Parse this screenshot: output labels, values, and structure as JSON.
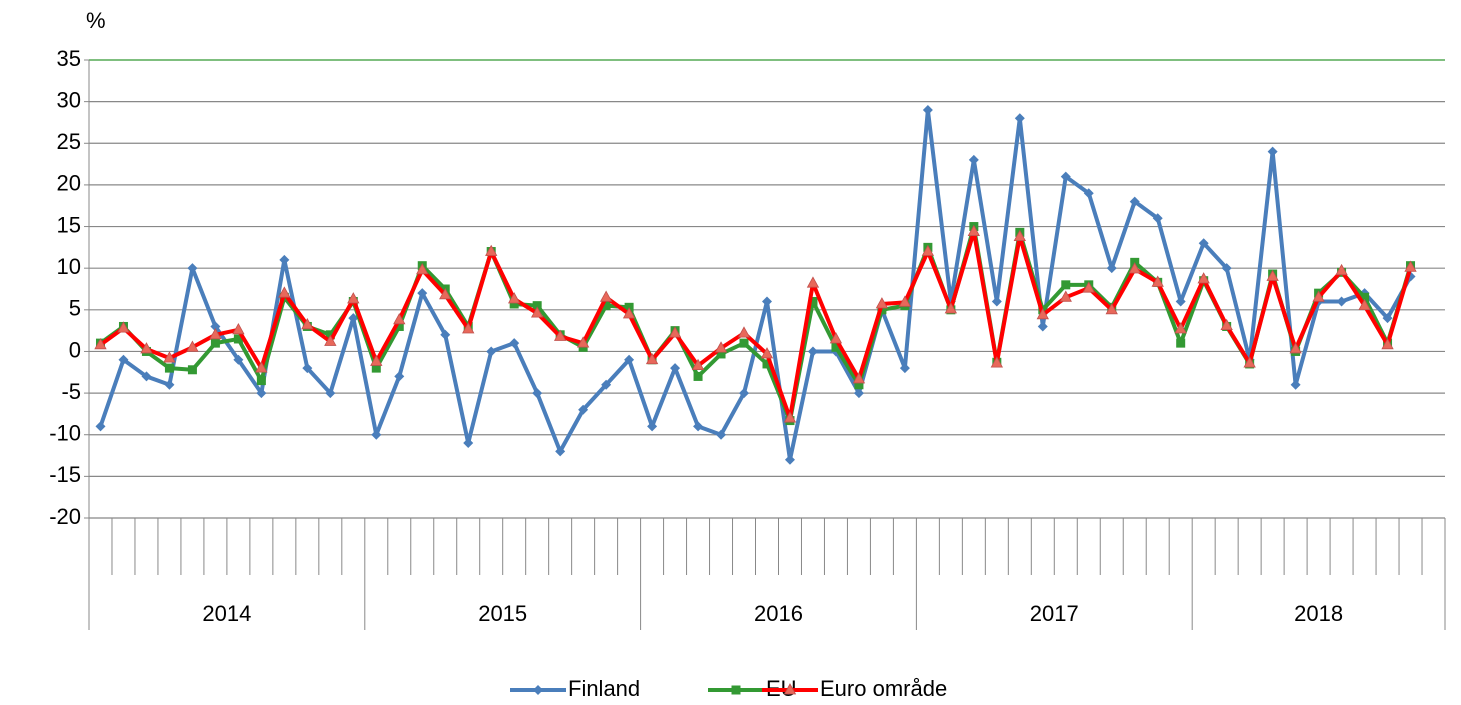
{
  "chart_data": {
    "type": "line",
    "y_axis_label": "%",
    "categories": [
      null,
      null,
      null,
      null,
      null,
      null,
      null,
      null,
      null,
      null,
      null,
      null,
      null,
      null,
      null,
      null,
      null,
      null,
      null,
      null,
      null,
      null,
      null,
      null,
      null,
      null,
      null,
      null,
      null,
      null,
      null,
      null,
      null,
      null,
      null,
      null,
      null,
      null,
      null,
      null,
      null,
      null,
      null,
      null,
      null,
      null,
      null,
      null,
      null,
      null,
      null,
      null,
      null,
      null,
      null,
      null,
      null,
      null,
      null
    ],
    "year_groups": [
      {
        "label": "2014",
        "count": 12
      },
      {
        "label": "2015",
        "count": 12
      },
      {
        "label": "2016",
        "count": 12
      },
      {
        "label": "2017",
        "count": 12
      },
      {
        "label": "2018",
        "count": 11
      }
    ],
    "series": [
      {
        "name": "Finland",
        "color": "#4a7ebb",
        "marker": "diamond",
        "values": [
          -9,
          -1,
          -3,
          -4,
          10,
          3,
          -1,
          -5,
          11,
          -2,
          -5,
          4,
          -10,
          -3,
          7,
          2,
          -11,
          0,
          1,
          -5,
          -12,
          -7,
          -4,
          -1,
          -9,
          -2,
          -9,
          -10,
          -5,
          6,
          -13,
          0,
          0,
          -5,
          5,
          -2,
          29,
          6,
          23,
          6,
          28,
          3,
          21,
          19,
          10,
          18,
          16,
          6,
          13,
          10,
          -1,
          24,
          -4,
          6,
          6,
          7,
          4,
          9,
          null
        ]
      },
      {
        "name": "EU",
        "color": "#339933",
        "marker": "square",
        "values": [
          1,
          3,
          0,
          -2,
          -2.2,
          1,
          1.5,
          -3.5,
          6.5,
          3,
          2,
          6,
          -2,
          3,
          10.3,
          7.5,
          3,
          12,
          5.7,
          5.5,
          2,
          0.5,
          5.5,
          5.3,
          -1,
          2.5,
          -3,
          -0.3,
          1,
          -1.5,
          -8.3,
          6,
          0.5,
          -4,
          5,
          5.5,
          12.5,
          5,
          15,
          -1.3,
          14.3,
          5,
          8,
          8,
          5.3,
          10.7,
          8.3,
          1,
          8.5,
          3,
          -1.5,
          9.3,
          0,
          7,
          9.5,
          6.5,
          1,
          10.3,
          null
        ]
      },
      {
        "name": "Euro område",
        "color": "#ff0000",
        "marker": "triangle",
        "values": [
          0.8,
          2.8,
          0.3,
          -0.8,
          0.5,
          2,
          2.6,
          -2,
          7,
          3.2,
          1.2,
          6.3,
          -1.2,
          3.8,
          9.8,
          6.8,
          2.7,
          12,
          6.3,
          4.6,
          1.8,
          1,
          6.5,
          4.5,
          -1,
          2.2,
          -1.7,
          0.4,
          2.2,
          -0.3,
          -8,
          8.2,
          1.5,
          -3.3,
          5.7,
          5.9,
          12,
          5.1,
          14.4,
          -1.4,
          13.8,
          4.4,
          6.5,
          7.6,
          5,
          9.9,
          8.3,
          2.7,
          8.7,
          3.1,
          -1.4,
          9,
          0.3,
          6.5,
          9.7,
          5.5,
          0.8,
          10.1,
          null
        ]
      }
    ],
    "ylim": [
      -20,
      35
    ],
    "yticks": [
      -20,
      -15,
      -10,
      -5,
      0,
      5,
      10,
      15,
      20,
      25,
      30,
      35
    ],
    "grid": true,
    "legend": "bottom"
  }
}
